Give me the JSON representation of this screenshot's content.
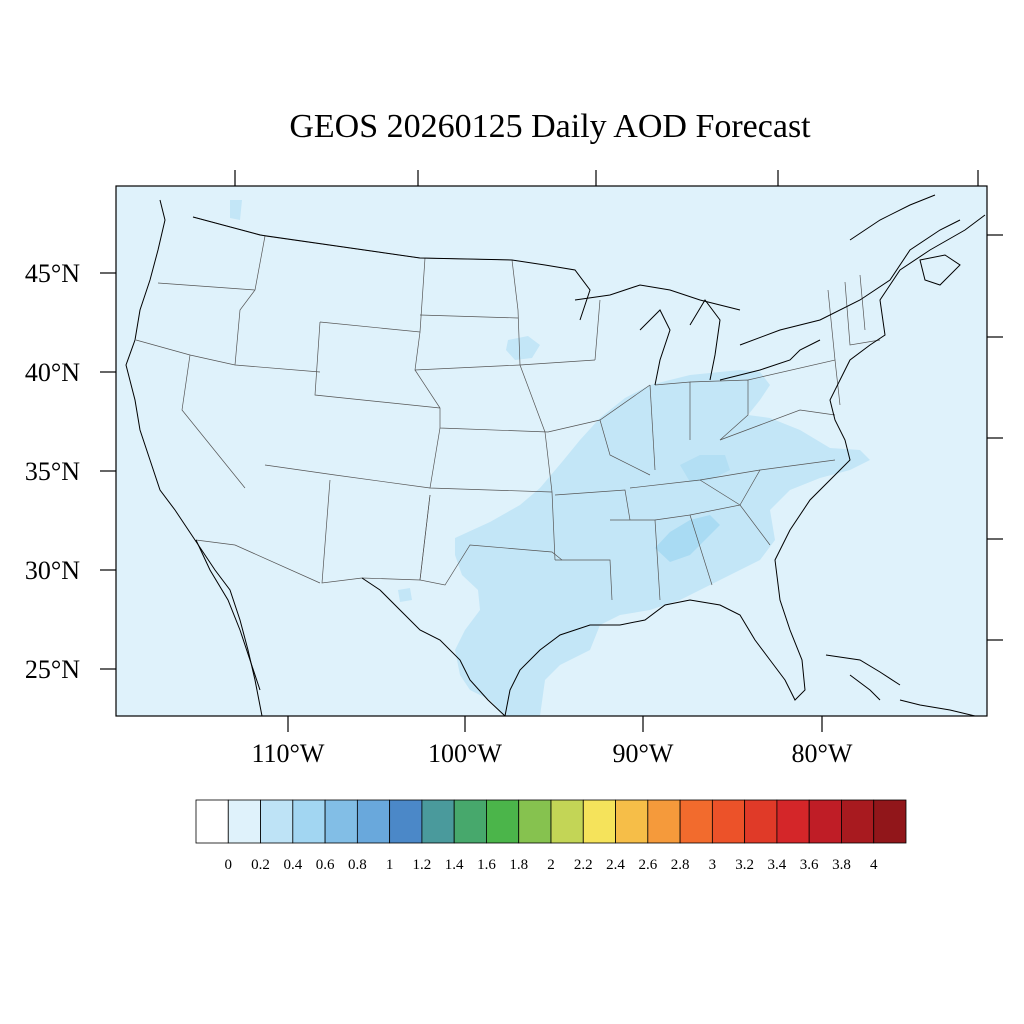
{
  "title": "GEOS 20260125 Daily AOD Forecast",
  "latitude_labels": [
    "45°N",
    "40°N",
    "35°N",
    "30°N",
    "25°N"
  ],
  "longitude_labels": [
    "110°W",
    "100°W",
    "90°W",
    "80°W"
  ],
  "map": {
    "background_color": "#dff2fb",
    "plume_colors": [
      "#c8e8f8",
      "#bee3f6",
      "#a8daf3"
    ]
  },
  "colorbar": {
    "labels": [
      "0",
      "0.2",
      "0.4",
      "0.6",
      "0.8",
      "1",
      "1.2",
      "1.4",
      "1.6",
      "1.8",
      "2",
      "2.2",
      "2.4",
      "2.6",
      "2.8",
      "3",
      "3.2",
      "3.4",
      "3.6",
      "3.8",
      "4"
    ],
    "colors": [
      "#ffffff",
      "#dff2fb",
      "#bee3f6",
      "#a2d6f2",
      "#82bee6",
      "#69a8dc",
      "#4b88c8",
      "#4a9a9c",
      "#47a86c",
      "#4bb54a",
      "#86c24f",
      "#c3d556",
      "#f5e35b",
      "#f6be48",
      "#f59a3b",
      "#f26b2d",
      "#ec5229",
      "#e03a28",
      "#d42629",
      "#bf1d26",
      "#a81a1f",
      "#91161a"
    ]
  }
}
